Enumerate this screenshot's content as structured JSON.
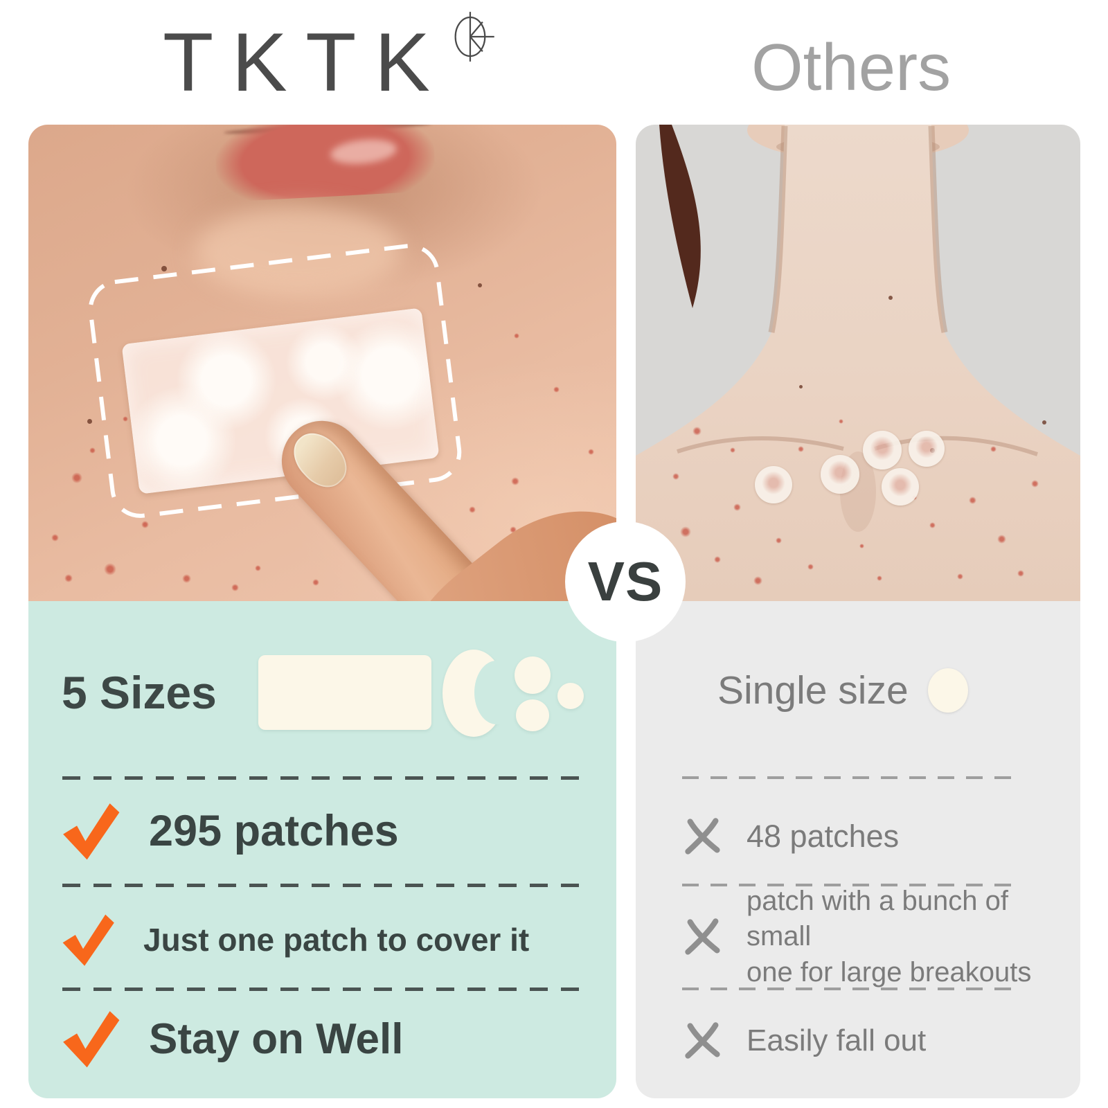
{
  "header": {
    "brand": "TKTK",
    "competitor_label": "Others"
  },
  "vs_label": "VS",
  "tktk_panel": {
    "sizes_heading": "5 Sizes",
    "feature_1": "295 patches",
    "feature_2": "Just one patch to cover it",
    "feature_3": "Stay on Well"
  },
  "others_panel": {
    "size_heading": "Single size",
    "drawback_1": "48 patches",
    "drawback_2_line_1": "patch with a bunch of small",
    "drawback_2_line_2": "one for large breakouts",
    "drawback_3": "Easily fall out"
  },
  "icons": {
    "logo_mark": "tktk-logo-mark-icon",
    "check": "check-icon",
    "cross": "x-icon"
  },
  "colors": {
    "mint_panel": "#cdeae1",
    "gray_panel": "#ebebeb",
    "check_orange": "#f8671b",
    "cross_gray": "#8f8f8f",
    "dark_text": "#3a4543",
    "gray_text": "#7b7b7b",
    "brand_text": "#4b4b4b",
    "others_text": "#a2a2a2",
    "cream_patch": "#fcf7e8"
  }
}
